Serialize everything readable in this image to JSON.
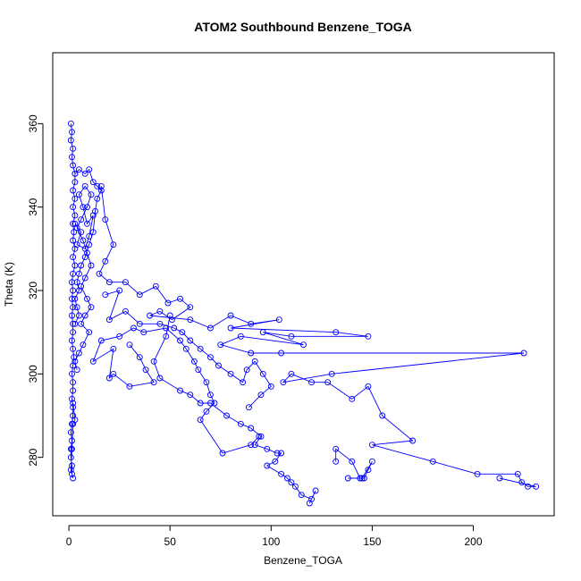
{
  "chart_data": {
    "type": "scatter",
    "title": "ATOM2 Southbound Benzene_TOGA",
    "xlabel": "Benzene_TOGA",
    "ylabel": "Theta (K)",
    "xlim": [
      -8,
      240
    ],
    "ylim": [
      266,
      377
    ],
    "xticks": [
      0,
      50,
      100,
      150,
      200
    ],
    "yticks": [
      280,
      300,
      320,
      340,
      360
    ],
    "grid": false,
    "style": {
      "marker": "open-circle",
      "connected": true,
      "color": "#0000ff"
    },
    "series": [
      {
        "points": [
          [
            1,
            360
          ],
          [
            1.5,
            358
          ],
          [
            1,
            356
          ],
          [
            2,
            354
          ],
          [
            1.5,
            352
          ],
          [
            2,
            350
          ],
          [
            3,
            348
          ],
          [
            3,
            346
          ],
          [
            2,
            344
          ],
          [
            3,
            342
          ],
          [
            2,
            340
          ],
          [
            3,
            338
          ],
          [
            2,
            336
          ],
          [
            2.5,
            334
          ],
          [
            2,
            332
          ],
          [
            3,
            330
          ],
          [
            2,
            328
          ],
          [
            3,
            326
          ],
          [
            2,
            324
          ],
          [
            1.5,
            322
          ],
          [
            2,
            320
          ],
          [
            1.5,
            318
          ],
          [
            2,
            316
          ],
          [
            1.5,
            314
          ],
          [
            2,
            312
          ],
          [
            2,
            310
          ],
          [
            1.5,
            308
          ],
          [
            2,
            306
          ],
          [
            2.5,
            304
          ],
          [
            2,
            302
          ],
          [
            1.5,
            300
          ],
          [
            2,
            298
          ],
          [
            2,
            296
          ],
          [
            1.5,
            294
          ],
          [
            2,
            292
          ],
          [
            2,
            290
          ],
          [
            1.5,
            288
          ],
          [
            1,
            286
          ],
          [
            1.5,
            284
          ],
          [
            1,
            282
          ],
          [
            1,
            280
          ],
          [
            1.5,
            278
          ],
          [
            1.5,
            276
          ],
          [
            2,
            275
          ],
          [
            1,
            277
          ],
          [
            1.5,
            282
          ],
          [
            2,
            288
          ],
          [
            3,
            289
          ],
          [
            2,
            293
          ]
        ]
      },
      {
        "points": [
          [
            3,
            348
          ],
          [
            5,
            349
          ],
          [
            8,
            348
          ],
          [
            10,
            349
          ],
          [
            12,
            346
          ],
          [
            14,
            345
          ],
          [
            16,
            344
          ],
          [
            14,
            342
          ],
          [
            13,
            339
          ],
          [
            12,
            334
          ],
          [
            10,
            331
          ],
          [
            8,
            328
          ],
          [
            6,
            326
          ],
          [
            5,
            324
          ],
          [
            4,
            322
          ],
          [
            5,
            320
          ],
          [
            3,
            318
          ],
          [
            4,
            316
          ],
          [
            5,
            314
          ],
          [
            3,
            312
          ]
        ]
      },
      {
        "points": [
          [
            16,
            345
          ],
          [
            18,
            337
          ],
          [
            22,
            331
          ],
          [
            18,
            327
          ],
          [
            15,
            324
          ],
          [
            20,
            322
          ],
          [
            28,
            322
          ],
          [
            35,
            319
          ],
          [
            43,
            321
          ],
          [
            49,
            317
          ],
          [
            55,
            318
          ],
          [
            60,
            316
          ],
          [
            51,
            313
          ],
          [
            45,
            315
          ],
          [
            40,
            314
          ],
          [
            60,
            313
          ],
          [
            70,
            311
          ],
          [
            80,
            314
          ],
          [
            90,
            312
          ],
          [
            104,
            313
          ],
          [
            80,
            311
          ],
          [
            132,
            310
          ],
          [
            148,
            309
          ],
          [
            110,
            309
          ],
          [
            96,
            310
          ],
          [
            116,
            307
          ],
          [
            85,
            309
          ],
          [
            75,
            307
          ],
          [
            90,
            305
          ],
          [
            105,
            305
          ],
          [
            225,
            305
          ],
          [
            130,
            300
          ],
          [
            106,
            298
          ],
          [
            110,
            300
          ],
          [
            120,
            298
          ],
          [
            128,
            298
          ],
          [
            140,
            294
          ],
          [
            148,
            297
          ],
          [
            155,
            290
          ],
          [
            170,
            284
          ],
          [
            150,
            283
          ],
          [
            180,
            279
          ],
          [
            202,
            276
          ],
          [
            222,
            276
          ],
          [
            224,
            274
          ],
          [
            227,
            273
          ],
          [
            231,
            273
          ],
          [
            213,
            275
          ]
        ]
      },
      {
        "points": [
          [
            50,
            314
          ],
          [
            48,
            309
          ],
          [
            42,
            303
          ],
          [
            45,
            299
          ],
          [
            55,
            296
          ],
          [
            60,
            295
          ],
          [
            65,
            293
          ],
          [
            70,
            293
          ],
          [
            78,
            290
          ],
          [
            85,
            288
          ],
          [
            90,
            287
          ],
          [
            95,
            285
          ],
          [
            92,
            283
          ],
          [
            98,
            282
          ],
          [
            103,
            281
          ],
          [
            105,
            281
          ],
          [
            102,
            279
          ],
          [
            98,
            278
          ],
          [
            105,
            276
          ],
          [
            108,
            275
          ],
          [
            110,
            274
          ],
          [
            112,
            273
          ],
          [
            115,
            271
          ],
          [
            120,
            270
          ],
          [
            122,
            272
          ],
          [
            119,
            269
          ]
        ]
      },
      {
        "points": [
          [
            30,
            307
          ],
          [
            35,
            304
          ],
          [
            38,
            301
          ],
          [
            42,
            298
          ],
          [
            30,
            297
          ],
          [
            22,
            300
          ],
          [
            20,
            299
          ],
          [
            22,
            306
          ],
          [
            12,
            303
          ],
          [
            16,
            308
          ],
          [
            25,
            309
          ],
          [
            32,
            311
          ],
          [
            37,
            310
          ],
          [
            48,
            311
          ],
          [
            55,
            308
          ],
          [
            58,
            306
          ],
          [
            62,
            303
          ],
          [
            64,
            301
          ],
          [
            68,
            298
          ],
          [
            70,
            295
          ],
          [
            72,
            293
          ],
          [
            68,
            291
          ],
          [
            65,
            289
          ],
          [
            76,
            281
          ],
          [
            90,
            283
          ],
          [
            94,
            285
          ]
        ]
      },
      {
        "points": [
          [
            132,
            279
          ],
          [
            132,
            282
          ],
          [
            140,
            279
          ],
          [
            144,
            275
          ],
          [
            146,
            275
          ],
          [
            148,
            277
          ],
          [
            150,
            279
          ],
          [
            145,
            275
          ],
          [
            138,
            275
          ]
        ]
      },
      {
        "points": [
          [
            18,
            319
          ],
          [
            25,
            320
          ],
          [
            20,
            313
          ],
          [
            28,
            315
          ],
          [
            35,
            312
          ],
          [
            45,
            312
          ],
          [
            52,
            311
          ],
          [
            56,
            310
          ],
          [
            60,
            308
          ],
          [
            65,
            306
          ],
          [
            70,
            304
          ],
          [
            74,
            302
          ],
          [
            80,
            300
          ],
          [
            86,
            298
          ],
          [
            88,
            301
          ],
          [
            92,
            303
          ],
          [
            96,
            300
          ],
          [
            100,
            297
          ],
          [
            95,
            295
          ],
          [
            89,
            292
          ]
        ]
      },
      {
        "points": [
          [
            3,
            336
          ],
          [
            6,
            334
          ],
          [
            4,
            331
          ],
          [
            8,
            330
          ],
          [
            10,
            333
          ],
          [
            12,
            338
          ],
          [
            9,
            336
          ],
          [
            7,
            340
          ],
          [
            5,
            343
          ],
          [
            8,
            345
          ],
          [
            11,
            343
          ],
          [
            9,
            340
          ],
          [
            6,
            337
          ],
          [
            4,
            335
          ],
          [
            7,
            332
          ],
          [
            9,
            329
          ],
          [
            11,
            326
          ],
          [
            8,
            323
          ],
          [
            6,
            321
          ],
          [
            9,
            318
          ],
          [
            11,
            316
          ],
          [
            8,
            314
          ],
          [
            6,
            312
          ],
          [
            10,
            310
          ],
          [
            7,
            307
          ],
          [
            5,
            305
          ],
          [
            3,
            303
          ],
          [
            4,
            301
          ]
        ]
      }
    ]
  }
}
